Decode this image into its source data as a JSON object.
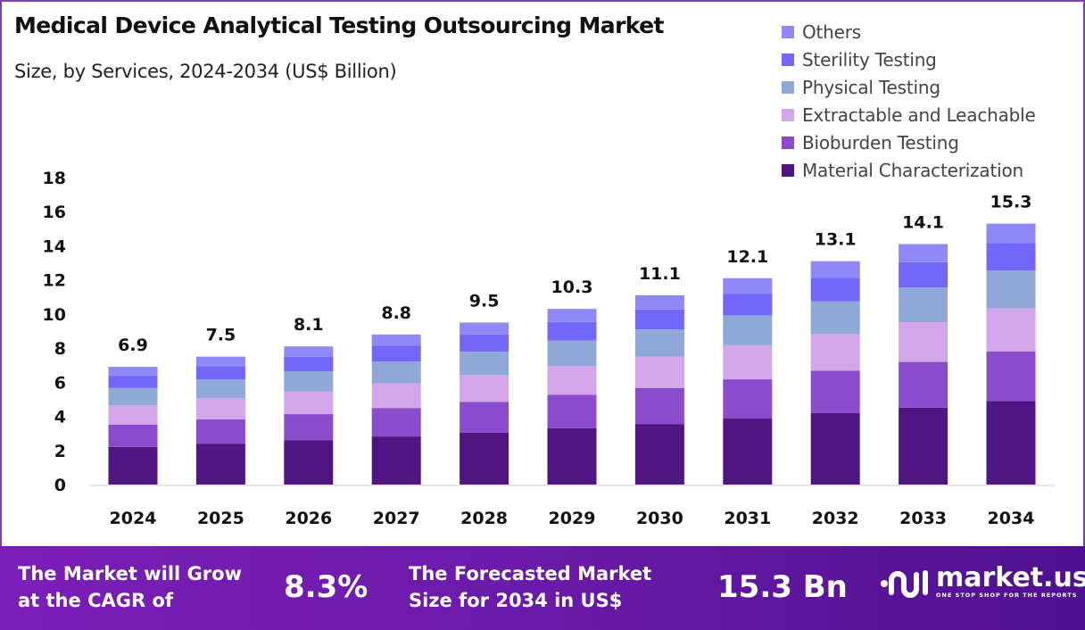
{
  "chart_data": {
    "type": "bar",
    "stacked": true,
    "title": "Medical Device Analytical Testing Outsourcing Market",
    "subtitle": "Size, by Services, 2024-2034 (US$ Billion)",
    "categories": [
      "2024",
      "2025",
      "2026",
      "2027",
      "2028",
      "2029",
      "2030",
      "2031",
      "2032",
      "2033",
      "2034"
    ],
    "totals": [
      "6.9",
      "7.5",
      "8.1",
      "8.8",
      "9.5",
      "10.3",
      "11.1",
      "12.1",
      "13.1",
      "14.1",
      "15.3"
    ],
    "series": [
      {
        "name": "Material Characterization",
        "color": "#4f1683",
        "values": [
          2.21,
          2.4,
          2.59,
          2.82,
          3.04,
          3.3,
          3.55,
          3.87,
          4.19,
          4.51,
          4.9
        ]
      },
      {
        "name": "Bioburden Testing",
        "color": "#8a4ccc",
        "values": [
          1.31,
          1.43,
          1.54,
          1.67,
          1.81,
          1.96,
          2.11,
          2.3,
          2.49,
          2.68,
          2.91
        ]
      },
      {
        "name": "Extractable and Leachable",
        "color": "#d3a6ec",
        "values": [
          1.14,
          1.24,
          1.34,
          1.45,
          1.57,
          1.7,
          1.83,
          2.0,
          2.16,
          2.33,
          2.52
        ]
      },
      {
        "name": "Physical Testing",
        "color": "#8fa8d8",
        "values": [
          1.0,
          1.09,
          1.17,
          1.28,
          1.38,
          1.49,
          1.61,
          1.75,
          1.9,
          2.04,
          2.22
        ]
      },
      {
        "name": "Sterility Testing",
        "color": "#7366fa",
        "values": [
          0.72,
          0.79,
          0.85,
          0.92,
          1.0,
          1.08,
          1.17,
          1.27,
          1.38,
          1.48,
          1.61
        ]
      },
      {
        "name": "Others",
        "color": "#8f88f8",
        "values": [
          0.52,
          0.55,
          0.61,
          0.66,
          0.7,
          0.77,
          0.83,
          0.91,
          0.98,
          1.06,
          1.14
        ]
      }
    ],
    "yticks": [
      "0",
      "2",
      "4",
      "6",
      "8",
      "10",
      "12",
      "14",
      "16",
      "18"
    ],
    "ylim": [
      0,
      18
    ],
    "grid": false,
    "legend_position": "top-right"
  },
  "footer": {
    "cagr_text_1": "The Market will Grow",
    "cagr_text_2": "at the CAGR of",
    "cagr_value": "8.3%",
    "forecast_text_1": "The Forecasted Market",
    "forecast_text_2": "Size for 2034 in US$",
    "forecast_value": "15.3 Bn",
    "logo_name": "market.us",
    "logo_tagline": "ONE STOP SHOP FOR THE REPORTS"
  }
}
